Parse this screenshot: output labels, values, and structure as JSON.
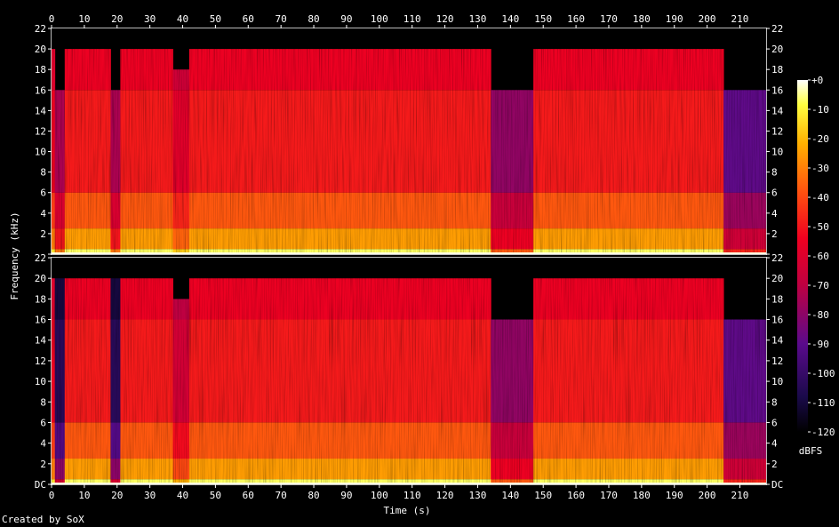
{
  "chart_data": {
    "type": "heatmap",
    "title": "",
    "xlabel": "Time (s)",
    "ylabel": "Frequency (kHz)",
    "colorbar_label": "dBFS",
    "xlim": [
      0,
      218
    ],
    "x_ticks": [
      0,
      10,
      20,
      30,
      40,
      50,
      60,
      70,
      80,
      90,
      100,
      110,
      120,
      130,
      140,
      150,
      160,
      170,
      180,
      190,
      200,
      210
    ],
    "ylim": [
      0,
      22
    ],
    "y_ticks": [
      "DC",
      "2",
      "4",
      "6",
      "8",
      "10",
      "12",
      "14",
      "16",
      "18",
      "20",
      "22"
    ],
    "colorbar_ticks": [
      "+0",
      "-10",
      "-20",
      "-30",
      "-40",
      "-50",
      "-60",
      "-70",
      "-80",
      "-90",
      "-100",
      "-110",
      "-120"
    ],
    "colorbar_range": [
      -120,
      0
    ],
    "channels": [
      {
        "name": "",
        "segments": [
          {
            "t": [
              0,
              1
            ],
            "top_khz": 20,
            "level_db": -60
          },
          {
            "t": [
              1,
              4
            ],
            "top_khz": 16,
            "level_db": -80
          },
          {
            "t": [
              4,
              18
            ],
            "top_khz": 20,
            "level_db": -55
          },
          {
            "t": [
              18,
              21
            ],
            "top_khz": 16,
            "level_db": -80
          },
          {
            "t": [
              21,
              37
            ],
            "top_khz": 20,
            "level_db": -55
          },
          {
            "t": [
              37,
              42
            ],
            "top_khz": 18,
            "level_db": -65
          },
          {
            "t": [
              42,
              134
            ],
            "top_khz": 20,
            "level_db": -55
          },
          {
            "t": [
              134,
              147
            ],
            "top_khz": 16,
            "level_db": -85
          },
          {
            "t": [
              147,
              205
            ],
            "top_khz": 20,
            "level_db": -55
          },
          {
            "t": [
              205,
              218
            ],
            "top_khz": 16,
            "level_db": -95
          }
        ]
      },
      {
        "name": "",
        "segments": [
          {
            "t": [
              0,
              1
            ],
            "top_khz": 20,
            "level_db": -60
          },
          {
            "t": [
              1,
              4
            ],
            "top_khz": 20,
            "level_db": -110
          },
          {
            "t": [
              4,
              18
            ],
            "top_khz": 20,
            "level_db": -55
          },
          {
            "t": [
              18,
              21
            ],
            "top_khz": 20,
            "level_db": -110
          },
          {
            "t": [
              21,
              37
            ],
            "top_khz": 20,
            "level_db": -55
          },
          {
            "t": [
              37,
              42
            ],
            "top_khz": 18,
            "level_db": -70
          },
          {
            "t": [
              42,
              134
            ],
            "top_khz": 20,
            "level_db": -55
          },
          {
            "t": [
              134,
              147
            ],
            "top_khz": 16,
            "level_db": -85
          },
          {
            "t": [
              147,
              205
            ],
            "top_khz": 20,
            "level_db": -55
          },
          {
            "t": [
              205,
              218
            ],
            "top_khz": 16,
            "level_db": -95
          }
        ]
      }
    ]
  },
  "footer": {
    "credit": "Created by SoX"
  }
}
